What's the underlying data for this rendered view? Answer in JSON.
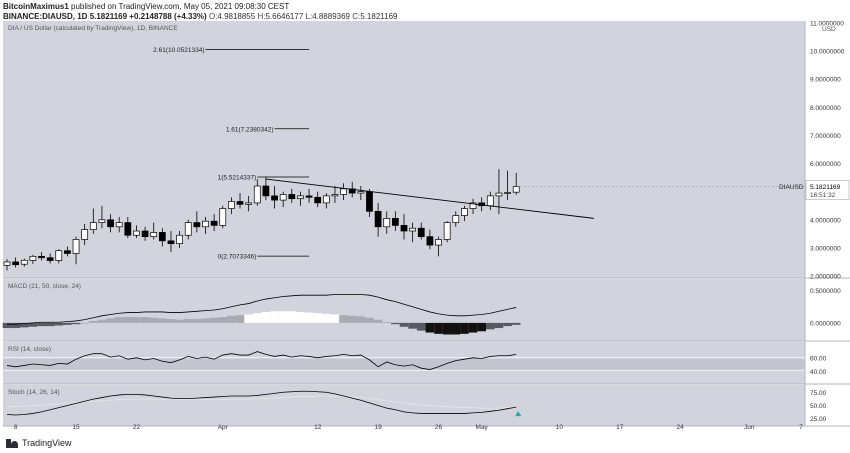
{
  "header": {
    "author": "BitcoinMaximus1",
    "published_text": "published on TradingView.com, May 05, 2021 09:08:30 CEST",
    "symbol": "BINANCE:DIAUSD, 1D",
    "price": "5.1821169",
    "change": "+0.2148788 (+4.33%)",
    "o_label": "O:",
    "o_value": "4.9818855",
    "h_label": "H:",
    "h_value": "5.6646177",
    "l_label": "L:",
    "l_value": "4.8889369",
    "c_label": "C:",
    "c_value": "5.1821169"
  },
  "footer": {
    "brand": "TradingView"
  },
  "colors": {
    "panel_bg": "#d1d4dc",
    "candle_up": "#ffffff",
    "candle_down": "#000000",
    "line": "#000000",
    "rsi_band": "#c3c6cf",
    "stoch_signal": "#e6e6e6",
    "arrow": "#26a69a"
  },
  "chart_data": [
    {
      "type": "candlestick",
      "title": "DIA / US Dollar (calculated by TradingView), 1D, BINANCE",
      "currency": "USD",
      "y_scale": "linear",
      "ylim": [
        2.0,
        11.0
      ],
      "yticks": [
        2.0,
        3.0,
        4.0,
        5.0,
        6.0,
        7.0,
        8.0,
        9.0,
        10.0,
        11.0
      ],
      "ytick_labels": [
        "2.0000000",
        "3.0000000",
        "4.0000000",
        "5.0000000",
        "6.0000000",
        "7.0000000",
        "8.0000000",
        "9.0000000",
        "10.0000000",
        "11.0000000"
      ],
      "x_range": [
        "2021-03-07",
        "2021-06-07"
      ],
      "xticks": [
        {
          "date": "2021-03-08",
          "label": "8"
        },
        {
          "date": "2021-03-15",
          "label": "15"
        },
        {
          "date": "2021-03-22",
          "label": "22"
        },
        {
          "date": "2021-04-01",
          "label": "Apr"
        },
        {
          "date": "2021-04-12",
          "label": "12"
        },
        {
          "date": "2021-04-19",
          "label": "19"
        },
        {
          "date": "2021-04-26",
          "label": "26"
        },
        {
          "date": "2021-05-01",
          "label": "May"
        },
        {
          "date": "2021-05-10",
          "label": "10"
        },
        {
          "date": "2021-05-17",
          "label": "17"
        },
        {
          "date": "2021-05-24",
          "label": "24"
        },
        {
          "date": "2021-06-01",
          "label": "Jun"
        },
        {
          "date": "2021-06-07",
          "label": "7"
        }
      ],
      "last_price_label": "DIAUSD",
      "last_price": 5.1821169,
      "last_price_text": "5.1821169",
      "countdown": "16:51:32",
      "candles": [
        {
          "date": "2021-03-07",
          "o": 2.38,
          "h": 2.6,
          "l": 2.2,
          "c": 2.5
        },
        {
          "date": "2021-03-08",
          "o": 2.5,
          "h": 2.66,
          "l": 2.3,
          "c": 2.4
        },
        {
          "date": "2021-03-09",
          "o": 2.42,
          "h": 2.62,
          "l": 2.33,
          "c": 2.56
        },
        {
          "date": "2021-03-10",
          "o": 2.55,
          "h": 2.75,
          "l": 2.43,
          "c": 2.7
        },
        {
          "date": "2021-03-11",
          "o": 2.7,
          "h": 2.85,
          "l": 2.55,
          "c": 2.65
        },
        {
          "date": "2021-03-12",
          "o": 2.65,
          "h": 2.8,
          "l": 2.45,
          "c": 2.55
        },
        {
          "date": "2021-03-13",
          "o": 2.55,
          "h": 2.95,
          "l": 2.45,
          "c": 2.9
        },
        {
          "date": "2021-03-14",
          "o": 2.9,
          "h": 3.05,
          "l": 2.7,
          "c": 2.8
        },
        {
          "date": "2021-03-15",
          "o": 2.8,
          "h": 3.4,
          "l": 2.42,
          "c": 3.3
        },
        {
          "date": "2021-03-16",
          "o": 3.3,
          "h": 3.85,
          "l": 3.1,
          "c": 3.65
        },
        {
          "date": "2021-03-17",
          "o": 3.65,
          "h": 4.4,
          "l": 3.5,
          "c": 3.9
        },
        {
          "date": "2021-03-18",
          "o": 3.9,
          "h": 4.5,
          "l": 3.7,
          "c": 4.0
        },
        {
          "date": "2021-03-19",
          "o": 4.0,
          "h": 4.2,
          "l": 3.55,
          "c": 3.75
        },
        {
          "date": "2021-03-20",
          "o": 3.75,
          "h": 4.1,
          "l": 3.55,
          "c": 3.9
        },
        {
          "date": "2021-03-21",
          "o": 3.9,
          "h": 4.1,
          "l": 3.35,
          "c": 3.45
        },
        {
          "date": "2021-03-22",
          "o": 3.45,
          "h": 3.8,
          "l": 3.35,
          "c": 3.6
        },
        {
          "date": "2021-03-23",
          "o": 3.6,
          "h": 3.75,
          "l": 3.25,
          "c": 3.4
        },
        {
          "date": "2021-03-24",
          "o": 3.4,
          "h": 3.9,
          "l": 3.3,
          "c": 3.55
        },
        {
          "date": "2021-03-25",
          "o": 3.55,
          "h": 3.7,
          "l": 3.05,
          "c": 3.25
        },
        {
          "date": "2021-03-26",
          "o": 3.25,
          "h": 3.6,
          "l": 2.85,
          "c": 3.15
        },
        {
          "date": "2021-03-27",
          "o": 3.15,
          "h": 3.6,
          "l": 3.0,
          "c": 3.45
        },
        {
          "date": "2021-03-28",
          "o": 3.45,
          "h": 4.0,
          "l": 3.3,
          "c": 3.9
        },
        {
          "date": "2021-03-29",
          "o": 3.9,
          "h": 4.3,
          "l": 3.55,
          "c": 3.75
        },
        {
          "date": "2021-03-30",
          "o": 3.75,
          "h": 4.1,
          "l": 3.5,
          "c": 3.95
        },
        {
          "date": "2021-03-31",
          "o": 3.95,
          "h": 4.2,
          "l": 3.6,
          "c": 3.8
        },
        {
          "date": "2021-04-01",
          "o": 3.8,
          "h": 4.5,
          "l": 3.7,
          "c": 4.4
        },
        {
          "date": "2021-04-02",
          "o": 4.4,
          "h": 4.8,
          "l": 4.2,
          "c": 4.65
        },
        {
          "date": "2021-04-03",
          "o": 4.65,
          "h": 4.95,
          "l": 4.4,
          "c": 4.55
        },
        {
          "date": "2021-04-04",
          "o": 4.55,
          "h": 4.85,
          "l": 4.3,
          "c": 4.6
        },
        {
          "date": "2021-04-05",
          "o": 4.6,
          "h": 5.45,
          "l": 4.5,
          "c": 5.2
        },
        {
          "date": "2021-04-06",
          "o": 5.2,
          "h": 5.52,
          "l": 4.7,
          "c": 4.85
        },
        {
          "date": "2021-04-07",
          "o": 4.85,
          "h": 5.2,
          "l": 4.4,
          "c": 4.7
        },
        {
          "date": "2021-04-08",
          "o": 4.7,
          "h": 5.0,
          "l": 4.45,
          "c": 4.9
        },
        {
          "date": "2021-04-09",
          "o": 4.9,
          "h": 5.1,
          "l": 4.6,
          "c": 4.75
        },
        {
          "date": "2021-04-10",
          "o": 4.75,
          "h": 5.0,
          "l": 4.5,
          "c": 4.85
        },
        {
          "date": "2021-04-11",
          "o": 4.85,
          "h": 5.1,
          "l": 4.6,
          "c": 4.8
        },
        {
          "date": "2021-04-12",
          "o": 4.8,
          "h": 5.0,
          "l": 4.45,
          "c": 4.6
        },
        {
          "date": "2021-04-13",
          "o": 4.6,
          "h": 4.95,
          "l": 4.4,
          "c": 4.85
        },
        {
          "date": "2021-04-14",
          "o": 4.85,
          "h": 5.2,
          "l": 4.6,
          "c": 4.9
        },
        {
          "date": "2021-04-15",
          "o": 4.9,
          "h": 5.3,
          "l": 4.7,
          "c": 5.1
        },
        {
          "date": "2021-04-16",
          "o": 5.1,
          "h": 5.35,
          "l": 4.8,
          "c": 4.95
        },
        {
          "date": "2021-04-17",
          "o": 4.95,
          "h": 5.2,
          "l": 4.7,
          "c": 5.0
        },
        {
          "date": "2021-04-18",
          "o": 5.0,
          "h": 5.1,
          "l": 4.1,
          "c": 4.3
        },
        {
          "date": "2021-04-19",
          "o": 4.3,
          "h": 4.6,
          "l": 3.4,
          "c": 3.75
        },
        {
          "date": "2021-04-20",
          "o": 3.75,
          "h": 4.3,
          "l": 3.5,
          "c": 4.05
        },
        {
          "date": "2021-04-21",
          "o": 4.05,
          "h": 4.3,
          "l": 3.6,
          "c": 3.8
        },
        {
          "date": "2021-04-22",
          "o": 3.8,
          "h": 4.2,
          "l": 3.3,
          "c": 3.6
        },
        {
          "date": "2021-04-23",
          "o": 3.6,
          "h": 3.9,
          "l": 3.2,
          "c": 3.7
        },
        {
          "date": "2021-04-24",
          "o": 3.7,
          "h": 3.9,
          "l": 3.3,
          "c": 3.4
        },
        {
          "date": "2021-04-25",
          "o": 3.4,
          "h": 3.65,
          "l": 2.95,
          "c": 3.1
        },
        {
          "date": "2021-04-26",
          "o": 3.1,
          "h": 3.4,
          "l": 2.7,
          "c": 3.3
        },
        {
          "date": "2021-04-27",
          "o": 3.3,
          "h": 3.95,
          "l": 3.2,
          "c": 3.9
        },
        {
          "date": "2021-04-28",
          "o": 3.9,
          "h": 4.3,
          "l": 3.75,
          "c": 4.15
        },
        {
          "date": "2021-04-29",
          "o": 4.15,
          "h": 4.5,
          "l": 3.95,
          "c": 4.4
        },
        {
          "date": "2021-04-30",
          "o": 4.4,
          "h": 4.75,
          "l": 4.2,
          "c": 4.6
        },
        {
          "date": "2021-05-01",
          "o": 4.6,
          "h": 4.8,
          "l": 4.3,
          "c": 4.5
        },
        {
          "date": "2021-05-02",
          "o": 4.5,
          "h": 5.0,
          "l": 4.35,
          "c": 4.85
        },
        {
          "date": "2021-05-03",
          "o": 4.85,
          "h": 5.8,
          "l": 4.2,
          "c": 4.95
        },
        {
          "date": "2021-05-04",
          "o": 4.95,
          "h": 5.75,
          "l": 4.7,
          "c": 4.97
        },
        {
          "date": "2021-05-05",
          "o": 4.9818855,
          "h": 5.6646177,
          "l": 4.8889369,
          "c": 5.1821169
        }
      ],
      "fib_levels": [
        {
          "label": "2.61(10.0521334)",
          "value": 10.0521334,
          "from": "2021-03-30",
          "to": "2021-04-11"
        },
        {
          "label": "1.61(7.2380342)",
          "value": 7.2380342,
          "from": "2021-04-07",
          "to": "2021-04-11"
        },
        {
          "label": "1(5.5214337)",
          "value": 5.5214337,
          "from": "2021-04-05",
          "to": "2021-04-11"
        },
        {
          "label": "0(2.7073346)",
          "value": 2.7073346,
          "from": "2021-04-05",
          "to": "2021-04-11"
        }
      ],
      "trendline": {
        "start": {
          "date": "2021-04-06",
          "value": 5.45
        },
        "end": {
          "date": "2021-05-14",
          "value": 4.05
        }
      }
    },
    {
      "type": "histogram+line",
      "title": "MACD (21, 50, close, 24)",
      "ylim": [
        -0.25,
        0.65
      ],
      "yticks": [
        0.0,
        0.5
      ],
      "ytick_labels": [
        "0.0000000",
        "0.5000000"
      ],
      "macd_line": [
        -0.02,
        -0.02,
        -0.01,
        0.0,
        0.01,
        0.01,
        0.01,
        0.02,
        0.03,
        0.05,
        0.08,
        0.11,
        0.13,
        0.15,
        0.16,
        0.16,
        0.17,
        0.17,
        0.17,
        0.16,
        0.16,
        0.17,
        0.18,
        0.19,
        0.2,
        0.22,
        0.25,
        0.28,
        0.3,
        0.34,
        0.37,
        0.39,
        0.41,
        0.42,
        0.43,
        0.43,
        0.43,
        0.43,
        0.44,
        0.44,
        0.44,
        0.44,
        0.43,
        0.4,
        0.36,
        0.33,
        0.29,
        0.25,
        0.21,
        0.17,
        0.14,
        0.12,
        0.11,
        0.11,
        0.12,
        0.13,
        0.15,
        0.18,
        0.21,
        0.24
      ],
      "histogram": [
        -0.08,
        -0.08,
        -0.07,
        -0.06,
        -0.05,
        -0.05,
        -0.04,
        -0.03,
        -0.02,
        0.0,
        0.03,
        0.05,
        0.07,
        0.09,
        0.09,
        0.09,
        0.09,
        0.08,
        0.07,
        0.06,
        0.05,
        0.06,
        0.06,
        0.07,
        0.08,
        0.09,
        0.11,
        0.12,
        0.13,
        0.15,
        0.17,
        0.18,
        0.18,
        0.18,
        0.17,
        0.16,
        0.15,
        0.14,
        0.13,
        0.12,
        0.11,
        0.1,
        0.08,
        0.05,
        0.01,
        -0.02,
        -0.06,
        -0.09,
        -0.12,
        -0.15,
        -0.17,
        -0.18,
        -0.18,
        -0.17,
        -0.15,
        -0.13,
        -0.1,
        -0.08,
        -0.05,
        -0.03
      ]
    },
    {
      "type": "line",
      "title": "RSI (14, close)",
      "ylim": [
        25,
        80
      ],
      "yticks": [
        40,
        60
      ],
      "ytick_labels": [
        "40.00",
        "60.00"
      ],
      "band": [
        42,
        60
      ],
      "values": [
        49,
        47,
        49,
        51,
        50,
        49,
        52,
        51,
        58,
        63,
        66,
        66,
        61,
        63,
        58,
        60,
        57,
        59,
        55,
        53,
        57,
        62,
        59,
        61,
        58,
        64,
        66,
        64,
        64,
        69,
        65,
        62,
        64,
        61,
        63,
        62,
        60,
        62,
        63,
        65,
        63,
        64,
        57,
        47,
        54,
        50,
        48,
        50,
        45,
        43,
        47,
        52,
        56,
        58,
        60,
        59,
        62,
        63,
        63,
        65
      ]
    },
    {
      "type": "line",
      "title": "Stoch (14, 26, 14)",
      "ylim": [
        15,
        85
      ],
      "yticks": [
        25,
        50,
        75
      ],
      "ytick_labels": [
        "25.00",
        "50.00",
        "75.00"
      ],
      "k": [
        33,
        32,
        33,
        35,
        38,
        42,
        46,
        50,
        54,
        58,
        62,
        65,
        68,
        70,
        71,
        71,
        70,
        68,
        66,
        64,
        63,
        63,
        64,
        65,
        66,
        67,
        68,
        68,
        68,
        69,
        71,
        73,
        75,
        76,
        77,
        77,
        76,
        75,
        72,
        68,
        64,
        60,
        55,
        50,
        45,
        42,
        38,
        36,
        35,
        35,
        35,
        35,
        35,
        35,
        36,
        37,
        39,
        41,
        44,
        47
      ],
      "d": [
        48,
        48,
        49,
        50,
        51,
        52,
        53,
        55,
        56,
        57,
        58,
        59,
        60,
        61,
        61,
        62,
        62,
        62,
        62,
        62,
        61,
        61,
        61,
        61,
        61,
        61,
        61,
        62,
        62,
        63,
        63,
        64,
        65,
        66,
        67,
        67,
        68,
        68,
        68,
        67,
        66,
        65,
        63,
        61,
        59,
        57,
        55,
        53,
        51,
        50,
        49,
        48,
        47,
        46,
        46,
        45,
        45,
        45,
        46,
        47
      ]
    }
  ]
}
